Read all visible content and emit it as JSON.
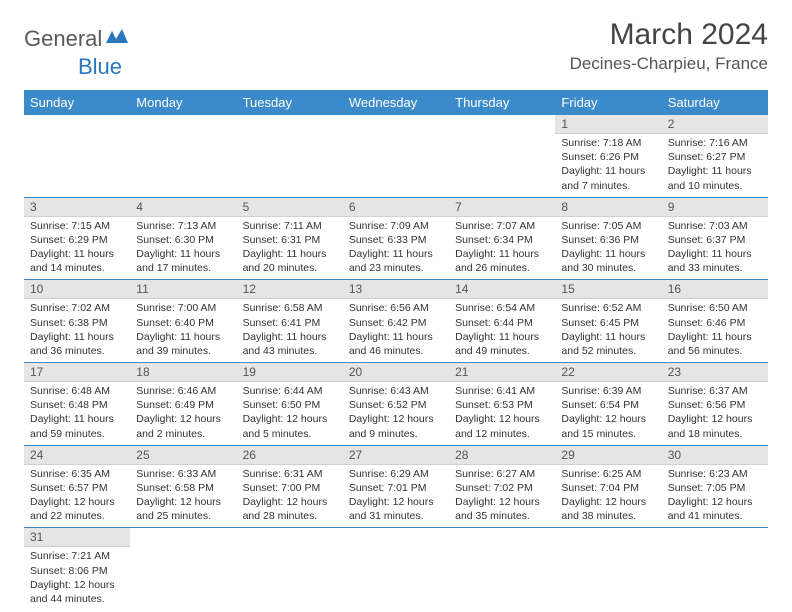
{
  "logo": {
    "text1": "General",
    "text2": "Blue"
  },
  "title": "March 2024",
  "location": "Decines-Charpieu, France",
  "colors": {
    "header_bg": "#3b8ac9",
    "header_text": "#ffffff",
    "daynum_bg": "#e5e5e5",
    "border": "#3b8ac9",
    "logo_blue": "#2a77bf",
    "logo_gray": "#5a5a5a"
  },
  "weekdays": [
    "Sunday",
    "Monday",
    "Tuesday",
    "Wednesday",
    "Thursday",
    "Friday",
    "Saturday"
  ],
  "weeks": [
    [
      null,
      null,
      null,
      null,
      null,
      {
        "n": "1",
        "sr": "Sunrise: 7:18 AM",
        "ss": "Sunset: 6:26 PM",
        "dl1": "Daylight: 11 hours",
        "dl2": "and 7 minutes."
      },
      {
        "n": "2",
        "sr": "Sunrise: 7:16 AM",
        "ss": "Sunset: 6:27 PM",
        "dl1": "Daylight: 11 hours",
        "dl2": "and 10 minutes."
      }
    ],
    [
      {
        "n": "3",
        "sr": "Sunrise: 7:15 AM",
        "ss": "Sunset: 6:29 PM",
        "dl1": "Daylight: 11 hours",
        "dl2": "and 14 minutes."
      },
      {
        "n": "4",
        "sr": "Sunrise: 7:13 AM",
        "ss": "Sunset: 6:30 PM",
        "dl1": "Daylight: 11 hours",
        "dl2": "and 17 minutes."
      },
      {
        "n": "5",
        "sr": "Sunrise: 7:11 AM",
        "ss": "Sunset: 6:31 PM",
        "dl1": "Daylight: 11 hours",
        "dl2": "and 20 minutes."
      },
      {
        "n": "6",
        "sr": "Sunrise: 7:09 AM",
        "ss": "Sunset: 6:33 PM",
        "dl1": "Daylight: 11 hours",
        "dl2": "and 23 minutes."
      },
      {
        "n": "7",
        "sr": "Sunrise: 7:07 AM",
        "ss": "Sunset: 6:34 PM",
        "dl1": "Daylight: 11 hours",
        "dl2": "and 26 minutes."
      },
      {
        "n": "8",
        "sr": "Sunrise: 7:05 AM",
        "ss": "Sunset: 6:36 PM",
        "dl1": "Daylight: 11 hours",
        "dl2": "and 30 minutes."
      },
      {
        "n": "9",
        "sr": "Sunrise: 7:03 AM",
        "ss": "Sunset: 6:37 PM",
        "dl1": "Daylight: 11 hours",
        "dl2": "and 33 minutes."
      }
    ],
    [
      {
        "n": "10",
        "sr": "Sunrise: 7:02 AM",
        "ss": "Sunset: 6:38 PM",
        "dl1": "Daylight: 11 hours",
        "dl2": "and 36 minutes."
      },
      {
        "n": "11",
        "sr": "Sunrise: 7:00 AM",
        "ss": "Sunset: 6:40 PM",
        "dl1": "Daylight: 11 hours",
        "dl2": "and 39 minutes."
      },
      {
        "n": "12",
        "sr": "Sunrise: 6:58 AM",
        "ss": "Sunset: 6:41 PM",
        "dl1": "Daylight: 11 hours",
        "dl2": "and 43 minutes."
      },
      {
        "n": "13",
        "sr": "Sunrise: 6:56 AM",
        "ss": "Sunset: 6:42 PM",
        "dl1": "Daylight: 11 hours",
        "dl2": "and 46 minutes."
      },
      {
        "n": "14",
        "sr": "Sunrise: 6:54 AM",
        "ss": "Sunset: 6:44 PM",
        "dl1": "Daylight: 11 hours",
        "dl2": "and 49 minutes."
      },
      {
        "n": "15",
        "sr": "Sunrise: 6:52 AM",
        "ss": "Sunset: 6:45 PM",
        "dl1": "Daylight: 11 hours",
        "dl2": "and 52 minutes."
      },
      {
        "n": "16",
        "sr": "Sunrise: 6:50 AM",
        "ss": "Sunset: 6:46 PM",
        "dl1": "Daylight: 11 hours",
        "dl2": "and 56 minutes."
      }
    ],
    [
      {
        "n": "17",
        "sr": "Sunrise: 6:48 AM",
        "ss": "Sunset: 6:48 PM",
        "dl1": "Daylight: 11 hours",
        "dl2": "and 59 minutes."
      },
      {
        "n": "18",
        "sr": "Sunrise: 6:46 AM",
        "ss": "Sunset: 6:49 PM",
        "dl1": "Daylight: 12 hours",
        "dl2": "and 2 minutes."
      },
      {
        "n": "19",
        "sr": "Sunrise: 6:44 AM",
        "ss": "Sunset: 6:50 PM",
        "dl1": "Daylight: 12 hours",
        "dl2": "and 5 minutes."
      },
      {
        "n": "20",
        "sr": "Sunrise: 6:43 AM",
        "ss": "Sunset: 6:52 PM",
        "dl1": "Daylight: 12 hours",
        "dl2": "and 9 minutes."
      },
      {
        "n": "21",
        "sr": "Sunrise: 6:41 AM",
        "ss": "Sunset: 6:53 PM",
        "dl1": "Daylight: 12 hours",
        "dl2": "and 12 minutes."
      },
      {
        "n": "22",
        "sr": "Sunrise: 6:39 AM",
        "ss": "Sunset: 6:54 PM",
        "dl1": "Daylight: 12 hours",
        "dl2": "and 15 minutes."
      },
      {
        "n": "23",
        "sr": "Sunrise: 6:37 AM",
        "ss": "Sunset: 6:56 PM",
        "dl1": "Daylight: 12 hours",
        "dl2": "and 18 minutes."
      }
    ],
    [
      {
        "n": "24",
        "sr": "Sunrise: 6:35 AM",
        "ss": "Sunset: 6:57 PM",
        "dl1": "Daylight: 12 hours",
        "dl2": "and 22 minutes."
      },
      {
        "n": "25",
        "sr": "Sunrise: 6:33 AM",
        "ss": "Sunset: 6:58 PM",
        "dl1": "Daylight: 12 hours",
        "dl2": "and 25 minutes."
      },
      {
        "n": "26",
        "sr": "Sunrise: 6:31 AM",
        "ss": "Sunset: 7:00 PM",
        "dl1": "Daylight: 12 hours",
        "dl2": "and 28 minutes."
      },
      {
        "n": "27",
        "sr": "Sunrise: 6:29 AM",
        "ss": "Sunset: 7:01 PM",
        "dl1": "Daylight: 12 hours",
        "dl2": "and 31 minutes."
      },
      {
        "n": "28",
        "sr": "Sunrise: 6:27 AM",
        "ss": "Sunset: 7:02 PM",
        "dl1": "Daylight: 12 hours",
        "dl2": "and 35 minutes."
      },
      {
        "n": "29",
        "sr": "Sunrise: 6:25 AM",
        "ss": "Sunset: 7:04 PM",
        "dl1": "Daylight: 12 hours",
        "dl2": "and 38 minutes."
      },
      {
        "n": "30",
        "sr": "Sunrise: 6:23 AM",
        "ss": "Sunset: 7:05 PM",
        "dl1": "Daylight: 12 hours",
        "dl2": "and 41 minutes."
      }
    ],
    [
      {
        "n": "31",
        "sr": "Sunrise: 7:21 AM",
        "ss": "Sunset: 8:06 PM",
        "dl1": "Daylight: 12 hours",
        "dl2": "and 44 minutes."
      },
      null,
      null,
      null,
      null,
      null,
      null
    ]
  ]
}
